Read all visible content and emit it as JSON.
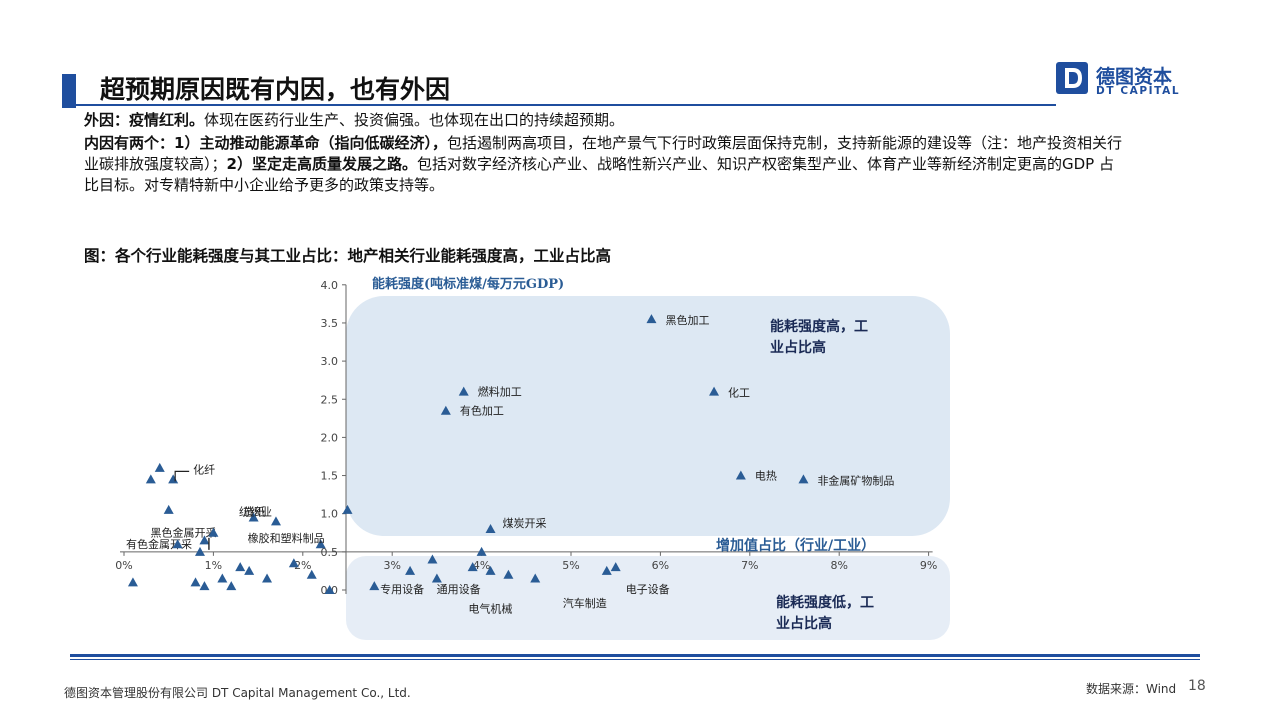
{
  "header": {
    "title": "超预期原因既有内因，也有外因",
    "logo_cn": "德图资本",
    "logo_en": "DT CAPITAL",
    "logo_mark": "D"
  },
  "body": {
    "p1_bold": "外因：疫情红利。",
    "p1_text": "体现在医药行业生产、投资偏强。也体现在出口的持续超预期。",
    "p2_bold1": "内因有两个：1）主动推动能源革命（指向低碳经济），",
    "p2_text1": "包括遏制两高项目，在地产景气下行时政策层面保持克制，支持新能源的建设等（注：地产投资相关行业碳排放强度较高）；",
    "p2_bold2": "2）坚定走高质量发展之路。",
    "p2_text2": "包括对数字经济核心产业、战略性新兴产业、知识产权密集型产业、体育产业等新经济制定更高的GDP 占比目标。对专精特新中小企业给予更多的政策支持等。"
  },
  "figure": {
    "title": "图：各个行业能耗强度与其工业占比：地产相关行业能耗强度高，工业占比高"
  },
  "chart_data": {
    "type": "scatter",
    "ylabel": "能耗强度(吨标准煤/每万元GDP)",
    "xlabel": "增加值占比（行业/工业）",
    "ylim": [
      0,
      4.0
    ],
    "xlim": [
      0,
      9
    ],
    "y_ticks": [
      "0.0",
      "0.5",
      "1.0",
      "1.5",
      "2.0",
      "2.5",
      "3.0",
      "3.5",
      "4.0"
    ],
    "x_ticks": [
      "0%",
      "1%",
      "2%",
      "3%",
      "4%",
      "5%",
      "6%",
      "7%",
      "8%",
      "9%"
    ],
    "annotation_high": "能耗强度高，工业占比高",
    "annotation_low": "能耗强度低，工业占比高",
    "marker_color": "#2a5c95",
    "points": [
      {
        "x": 5.9,
        "y": 3.55,
        "label": "黑色加工"
      },
      {
        "x": 6.6,
        "y": 2.6,
        "label": "化工"
      },
      {
        "x": 3.8,
        "y": 2.6,
        "label": "燃料加工"
      },
      {
        "x": 3.6,
        "y": 2.35,
        "label": "有色加工"
      },
      {
        "x": 6.9,
        "y": 1.5,
        "label": "电热"
      },
      {
        "x": 7.6,
        "y": 1.45,
        "label": "非金属矿物制品"
      },
      {
        "x": 4.1,
        "y": 0.8,
        "label": "煤炭开采"
      },
      {
        "x": 0.55,
        "y": 1.45,
        "label": "化纤"
      },
      {
        "x": 1.7,
        "y": 0.9,
        "label": "纺织业"
      },
      {
        "x": 1.45,
        "y": 0.95,
        "label": "造纸"
      },
      {
        "x": 0.9,
        "y": 0.65,
        "label": "黑色金属开采"
      },
      {
        "x": 2.2,
        "y": 0.6,
        "label": "橡胶和塑料制品"
      },
      {
        "x": 0.85,
        "y": 0.5,
        "label": "有色金属开采"
      },
      {
        "x": 4.0,
        "y": 0.5,
        "label": ""
      },
      {
        "x": 0.3,
        "y": 1.45,
        "label": ""
      },
      {
        "x": 0.4,
        "y": 1.6,
        "label": ""
      },
      {
        "x": 2.5,
        "y": 1.05,
        "label": ""
      },
      {
        "x": 0.5,
        "y": 1.05,
        "label": ""
      },
      {
        "x": 0.1,
        "y": 0.1,
        "label": ""
      },
      {
        "x": 0.8,
        "y": 0.1,
        "label": ""
      },
      {
        "x": 0.9,
        "y": 0.05,
        "label": ""
      },
      {
        "x": 1.1,
        "y": 0.15,
        "label": ""
      },
      {
        "x": 1.2,
        "y": 0.05,
        "label": ""
      },
      {
        "x": 1.3,
        "y": 0.3,
        "label": ""
      },
      {
        "x": 1.4,
        "y": 0.25,
        "label": ""
      },
      {
        "x": 1.6,
        "y": 0.15,
        "label": ""
      },
      {
        "x": 1.9,
        "y": 0.35,
        "label": ""
      },
      {
        "x": 2.1,
        "y": 0.2,
        "label": ""
      },
      {
        "x": 2.3,
        "y": 0.0,
        "label": ""
      },
      {
        "x": 2.8,
        "y": 0.05,
        "label": ""
      },
      {
        "x": 0.6,
        "y": 0.6,
        "label": ""
      },
      {
        "x": 1.0,
        "y": 0.75,
        "label": ""
      },
      {
        "x": 3.2,
        "y": 0.25,
        "label": "专用设备"
      },
      {
        "x": 3.5,
        "y": 0.15,
        "label": ""
      },
      {
        "x": 3.45,
        "y": 0.4,
        "label": ""
      },
      {
        "x": 3.9,
        "y": 0.3,
        "label": "通用设备"
      },
      {
        "x": 4.1,
        "y": 0.25,
        "label": ""
      },
      {
        "x": 4.3,
        "y": 0.2,
        "label": "电气机械"
      },
      {
        "x": 4.6,
        "y": 0.15,
        "label": ""
      },
      {
        "x": 5.4,
        "y": 0.25,
        "label": "汽车制造"
      },
      {
        "x": 5.5,
        "y": 0.3,
        "label": "电子设备"
      }
    ]
  },
  "footer": {
    "company": "德图资本管理股份有限公司 DT Capital Management Co., Ltd.",
    "source": "数据来源：Wind",
    "page": "18"
  }
}
